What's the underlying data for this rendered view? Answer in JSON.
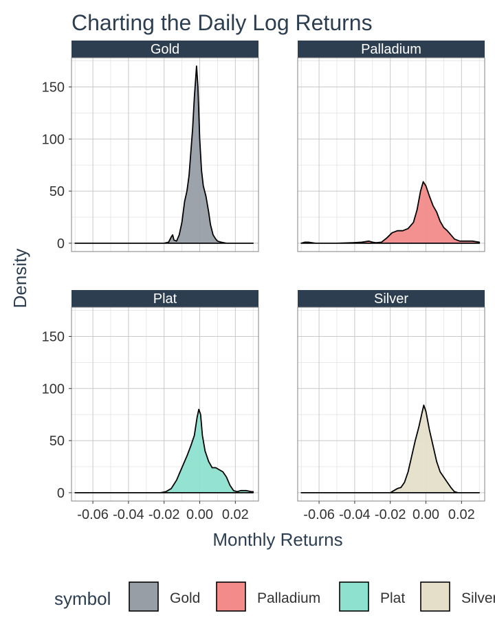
{
  "chart_data": {
    "type": "area",
    "title": "Charting the Daily Log Returns",
    "xlabel": "Monthly Returns",
    "ylabel": "Density",
    "xlim": [
      -0.072,
      0.033
    ],
    "ylim": [
      -8,
      178
    ],
    "x_ticks": [
      -0.06,
      -0.04,
      -0.02,
      0.0,
      0.02
    ],
    "x_tick_labels": [
      "-0.06",
      "-0.04",
      "-0.02",
      "0.00",
      "0.02"
    ],
    "y_ticks": [
      0,
      50,
      100,
      150
    ],
    "y_tick_labels": [
      "0",
      "50",
      "100",
      "150"
    ],
    "grid": true,
    "legend_position": "bottom",
    "legend_title": "symbol",
    "series": [
      {
        "name": "Gold",
        "color": "#989ea6",
        "points": [
          [
            -0.07,
            0
          ],
          [
            -0.02,
            0
          ],
          [
            -0.0175,
            1
          ],
          [
            -0.016,
            6
          ],
          [
            -0.0152,
            8
          ],
          [
            -0.0145,
            3
          ],
          [
            -0.013,
            2
          ],
          [
            -0.0115,
            8
          ],
          [
            -0.01,
            20
          ],
          [
            -0.0085,
            40
          ],
          [
            -0.0072,
            50
          ],
          [
            -0.006,
            65
          ],
          [
            -0.004,
            110
          ],
          [
            -0.003,
            140
          ],
          [
            -0.0018,
            170
          ],
          [
            -0.001,
            150
          ],
          [
            0.0,
            100
          ],
          [
            0.001,
            70
          ],
          [
            0.002,
            55
          ],
          [
            0.0035,
            45
          ],
          [
            0.005,
            30
          ],
          [
            0.006,
            18
          ],
          [
            0.0075,
            8
          ],
          [
            0.009,
            4
          ],
          [
            0.01,
            2
          ],
          [
            0.012,
            1
          ],
          [
            0.015,
            0
          ],
          [
            0.03,
            0
          ]
        ]
      },
      {
        "name": "Palladium",
        "color": "#f28b8a",
        "points": [
          [
            -0.07,
            0
          ],
          [
            -0.068,
            1
          ],
          [
            -0.066,
            1
          ],
          [
            -0.064,
            0.5
          ],
          [
            -0.062,
            0
          ],
          [
            -0.05,
            0
          ],
          [
            -0.041,
            0.5
          ],
          [
            -0.036,
            1
          ],
          [
            -0.032,
            2
          ],
          [
            -0.03,
            1
          ],
          [
            -0.028,
            0.5
          ],
          [
            -0.025,
            1
          ],
          [
            -0.022,
            5
          ],
          [
            -0.019,
            10
          ],
          [
            -0.016,
            12
          ],
          [
            -0.013,
            12
          ],
          [
            -0.01,
            14
          ],
          [
            -0.007,
            20
          ],
          [
            -0.005,
            32
          ],
          [
            -0.003,
            50
          ],
          [
            -0.0015,
            59
          ],
          [
            0.0,
            55
          ],
          [
            0.002,
            45
          ],
          [
            0.004,
            36
          ],
          [
            0.006,
            30
          ],
          [
            0.008,
            21
          ],
          [
            0.01,
            15
          ],
          [
            0.012,
            12
          ],
          [
            0.014,
            8
          ],
          [
            0.016,
            4
          ],
          [
            0.019,
            2
          ],
          [
            0.023,
            2
          ],
          [
            0.026,
            2
          ],
          [
            0.03,
            1
          ]
        ]
      },
      {
        "name": "Plat",
        "color": "#8ee0cf",
        "points": [
          [
            -0.07,
            0
          ],
          [
            -0.022,
            0
          ],
          [
            -0.019,
            1
          ],
          [
            -0.016,
            4
          ],
          [
            -0.013,
            12
          ],
          [
            -0.011,
            20
          ],
          [
            -0.009,
            28
          ],
          [
            -0.007,
            36
          ],
          [
            -0.005,
            45
          ],
          [
            -0.003,
            55
          ],
          [
            -0.0015,
            72
          ],
          [
            -0.0005,
            80
          ],
          [
            0.0005,
            75
          ],
          [
            0.0015,
            55
          ],
          [
            0.003,
            40
          ],
          [
            0.005,
            30
          ],
          [
            0.007,
            24
          ],
          [
            0.009,
            24
          ],
          [
            0.011,
            22
          ],
          [
            0.013,
            20
          ],
          [
            0.015,
            15
          ],
          [
            0.017,
            7
          ],
          [
            0.019,
            2
          ],
          [
            0.021,
            1
          ],
          [
            0.023,
            2
          ],
          [
            0.026,
            2
          ],
          [
            0.029,
            1
          ],
          [
            0.03,
            1
          ]
        ]
      },
      {
        "name": "Silver",
        "color": "#e5dfc9",
        "points": [
          [
            -0.07,
            0
          ],
          [
            -0.02,
            0
          ],
          [
            -0.018,
            2
          ],
          [
            -0.016,
            4
          ],
          [
            -0.014,
            5
          ],
          [
            -0.012,
            10
          ],
          [
            -0.01,
            20
          ],
          [
            -0.008,
            35
          ],
          [
            -0.006,
            50
          ],
          [
            -0.004,
            63
          ],
          [
            -0.002,
            78
          ],
          [
            -0.0012,
            84
          ],
          [
            0.0,
            78
          ],
          [
            0.002,
            60
          ],
          [
            0.004,
            45
          ],
          [
            0.006,
            30
          ],
          [
            0.008,
            20
          ],
          [
            0.01,
            15
          ],
          [
            0.012,
            10
          ],
          [
            0.014,
            5
          ],
          [
            0.016,
            1
          ],
          [
            0.018,
            0
          ],
          [
            0.03,
            0
          ]
        ]
      }
    ]
  }
}
